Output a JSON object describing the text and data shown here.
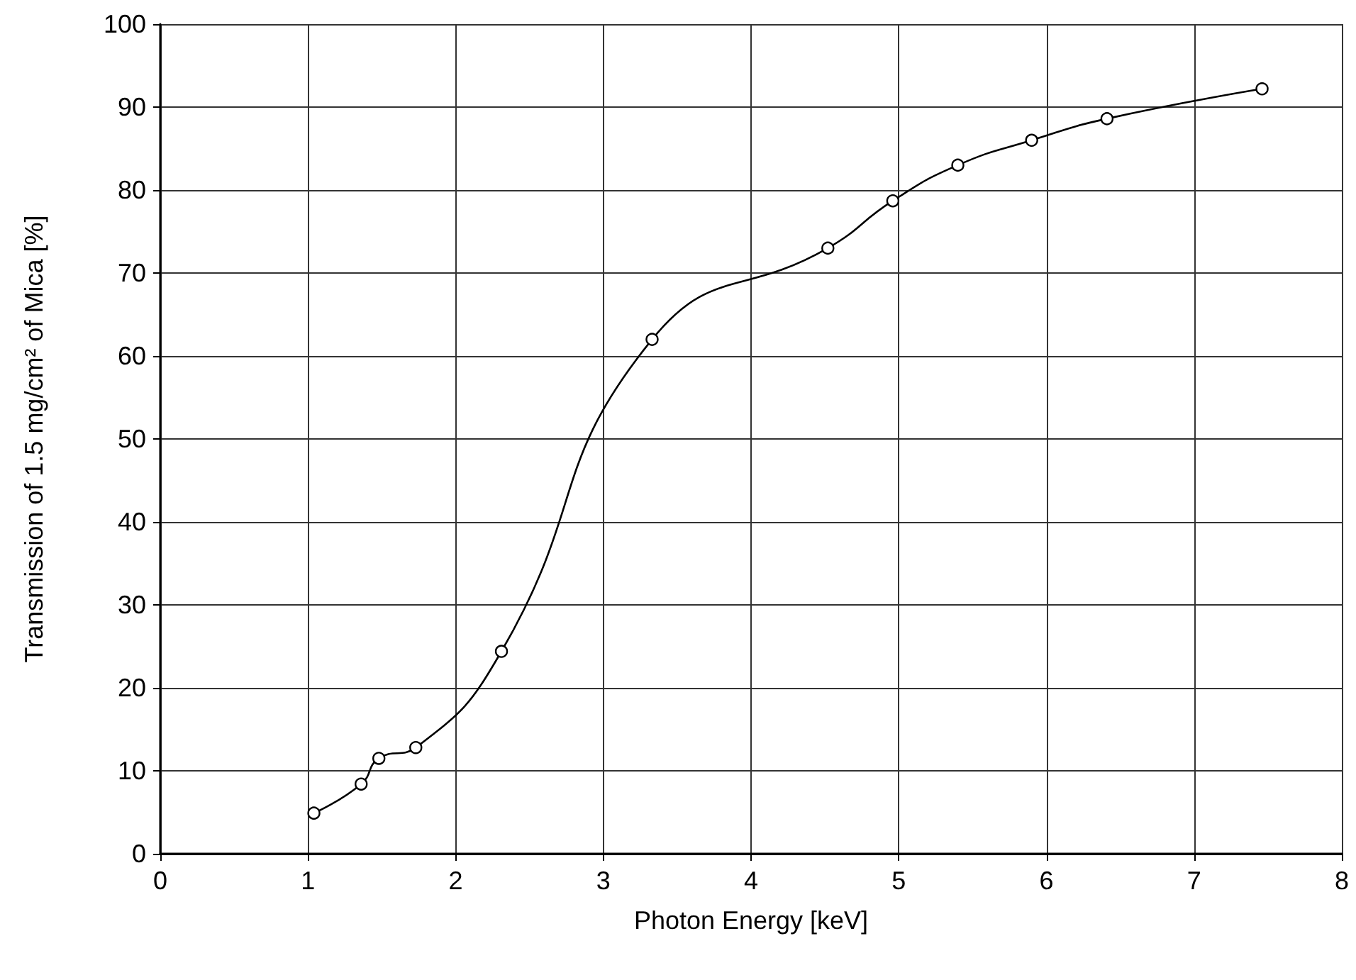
{
  "chart_data": {
    "type": "line",
    "xlabel": "Photon Energy [keV]",
    "ylabel": "Transmission of 1.5 mg/cm² of Mica [%]",
    "x": [
      1.04,
      1.36,
      1.48,
      1.73,
      2.31,
      3.33,
      4.52,
      4.96,
      5.4,
      5.9,
      6.41,
      7.46
    ],
    "series": [
      {
        "color": "#000000",
        "values": [
          4.9,
          8.4,
          11.5,
          12.8,
          24.4,
          62,
          73,
          78.7,
          83,
          86,
          88.6,
          92.2
        ]
      }
    ],
    "xlim": [
      0,
      8
    ],
    "xticks": [
      0,
      1,
      2,
      3,
      4,
      5,
      6,
      7,
      8
    ],
    "ylim": [
      0,
      100
    ],
    "yticks": [
      0,
      10,
      20,
      30,
      40,
      50,
      60,
      70,
      80,
      90,
      100
    ],
    "grid": true,
    "marker": "circle",
    "line_style": "solid"
  }
}
